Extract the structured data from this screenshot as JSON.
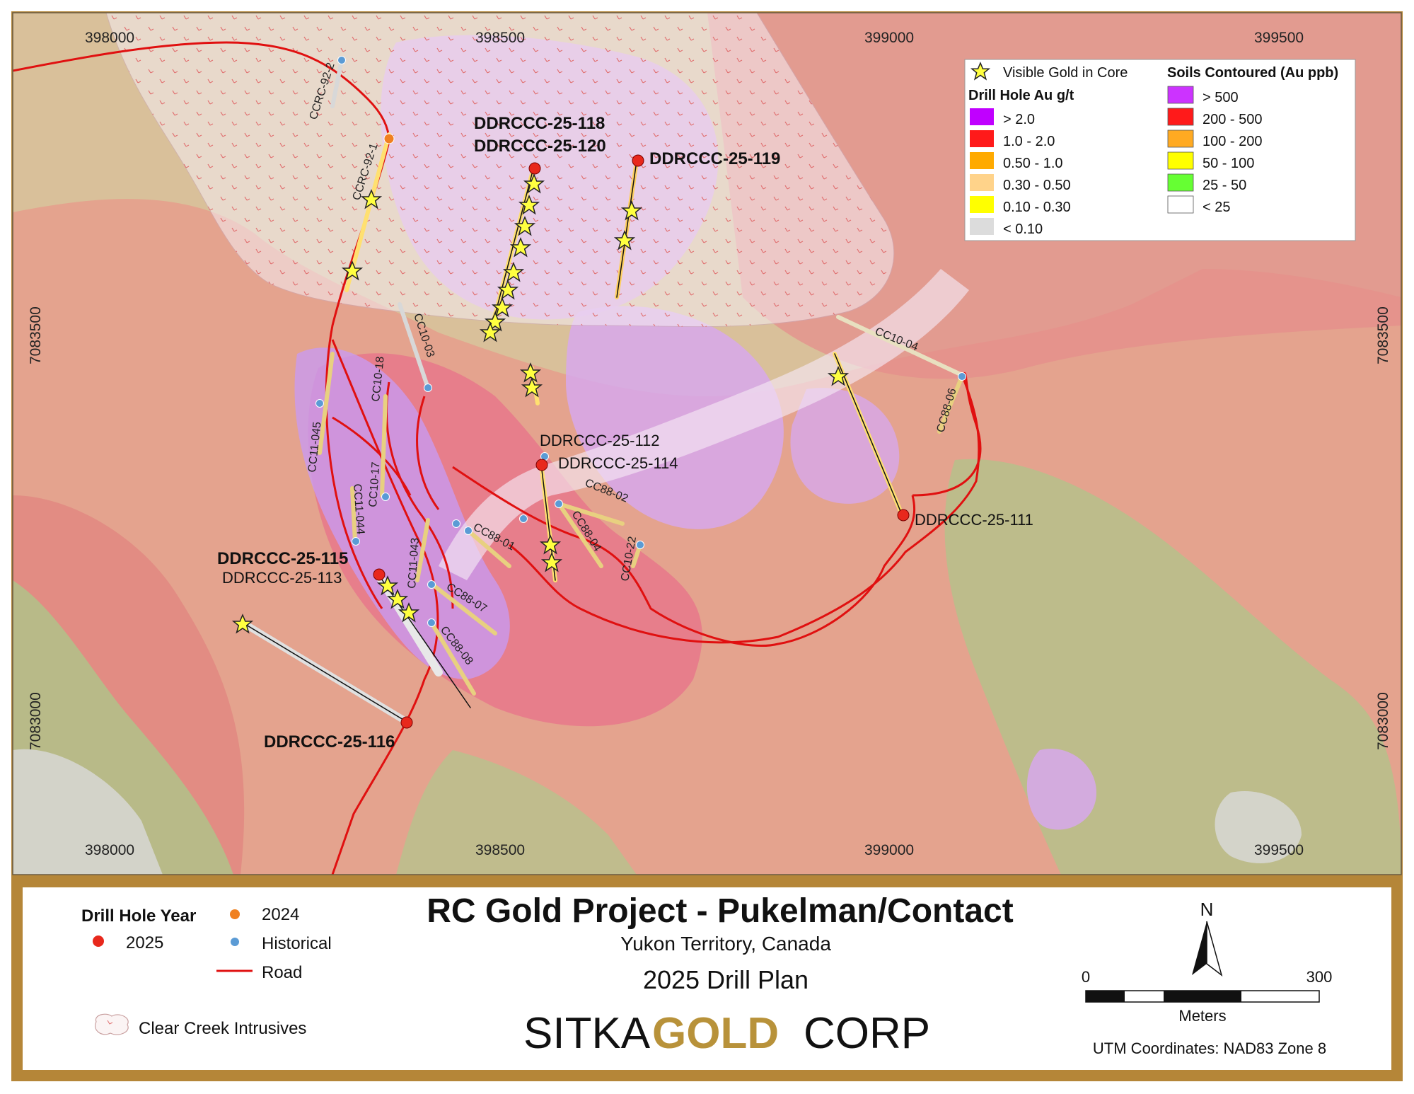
{
  "map": {
    "coordinates_top": [
      "398000",
      "398500",
      "399000",
      "399500"
    ],
    "coordinates_bottom": [
      "398000",
      "398500",
      "399000",
      "399500"
    ],
    "northings": [
      "7083500",
      "7083000"
    ]
  },
  "legend": {
    "visible_gold": "Visible Gold in Core",
    "drill_heading": "Drill Hole Au g/t",
    "drill_classes": [
      {
        "label": "> 2.0",
        "color": "#c000ff"
      },
      {
        "label": "1.0 - 2.0",
        "color": "#ff1a1a"
      },
      {
        "label": "0.50 - 1.0",
        "color": "#ffaa00"
      },
      {
        "label": "0.30 - 0.50",
        "color": "#ffd38a"
      },
      {
        "label": "0.10 - 0.30",
        "color": "#ffff00"
      },
      {
        "label": "< 0.10",
        "color": "#dcdcdc"
      }
    ],
    "soil_heading": "Soils Contoured (Au ppb)",
    "soil_classes": [
      {
        "label": "> 500",
        "color": "#cc33ff"
      },
      {
        "label": "200 - 500",
        "color": "#ff1a1a"
      },
      {
        "label": "100 - 200",
        "color": "#ffaa22"
      },
      {
        "label": "50 - 100",
        "color": "#ffff00"
      },
      {
        "label": "25 - 50",
        "color": "#66ff33"
      },
      {
        "label": "< 25",
        "color": "#ffffff"
      }
    ]
  },
  "drillholes": {
    "h118": "DDRCCC-25-118",
    "h120": "DDRCCC-25-120",
    "h119": "DDRCCC-25-119",
    "h112": "DDRCCC-25-112",
    "h114": "DDRCCC-25-114",
    "h111": "DDRCCC-25-111",
    "h115": "DDRCCC-25-115",
    "h113": "DDRCCC-25-113",
    "h116": "DDRCCC-25-116"
  },
  "historical_labels": {
    "ccrc92_2": "CCRC-92-2",
    "ccrc92_1": "CCRC-92-1",
    "cc10_03": "CC10-03",
    "cc10_18": "CC10-18",
    "cc11_045": "CC11-045",
    "cc10_17": "CC10-17",
    "cc11_044": "CC11-044",
    "cc11_043": "CC11-043",
    "cc88_01": "CC88-01",
    "cc88_07": "CC88-07",
    "cc88_08": "CC88-08",
    "cc88_02": "CC88-02",
    "cc88_04": "CC88-04",
    "cc10_22": "CC10-22",
    "cc10_04": "CC10-04",
    "cc88_06": "CC88-06"
  },
  "bottom": {
    "year_heading": "Drill Hole Year",
    "year_2025": "2025",
    "year_2024": "2024",
    "historical": "Historical",
    "road": "Road",
    "intrusives": "Clear Creek Intrusives",
    "title": "RC Gold Project - Pukelman/Contact",
    "subtitle": "Yukon Territory, Canada",
    "plan": "2025 Drill Plan",
    "brand_sitka": "SITKA",
    "brand_gold": "GOLD",
    "brand_corp": "CORP",
    "north": "N",
    "scale_start": "0",
    "scale_end": "300",
    "scale_unit": "Meters",
    "utm": "UTM Coordinates: NAD83 Zone 8"
  },
  "colors": {
    "frame": "#b58638",
    "road": "#e01010",
    "dot_2025": "#e8281c",
    "dot_2024": "#f08020",
    "dot_hist": "#5b9bd5",
    "star": "#ffff40"
  }
}
